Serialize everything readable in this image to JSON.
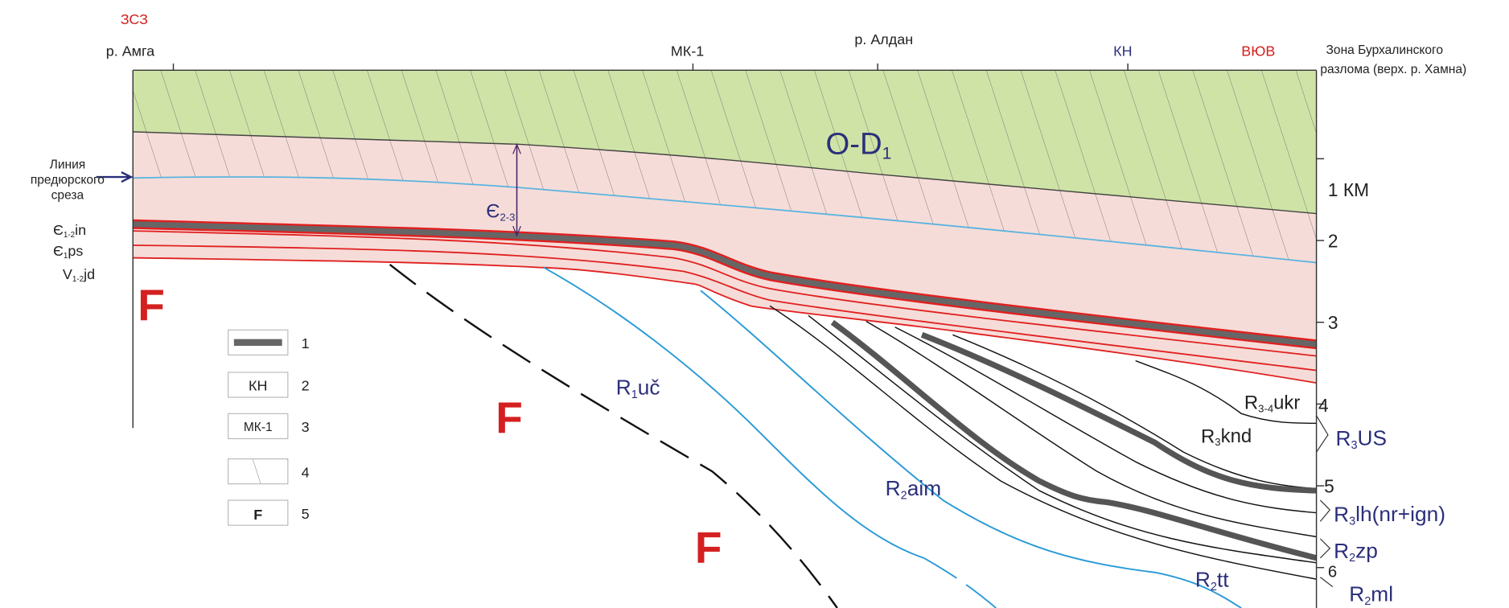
{
  "header": {
    "west": "ЗСЗ",
    "east": "ВЮВ",
    "points": [
      "р. Амга",
      "МК-1",
      "р. Алдан",
      "КН"
    ],
    "zone_line1": "Зона Бурхалинского",
    "zone_line2": "разлома (верх. р. Хамна)"
  },
  "pre_jurassic": [
    "Линия",
    "предюрского",
    "среза"
  ],
  "depth_labels": [
    "1 КМ",
    "2",
    "3",
    "4",
    "5",
    "6"
  ],
  "fault_symbol": "F",
  "legend": [
    {
      "number": "1"
    },
    {
      "number": "2",
      "sample": "КН"
    },
    {
      "number": "3",
      "sample": "МК-1"
    },
    {
      "number": "4"
    },
    {
      "number": "5",
      "sample": "F"
    }
  ],
  "units": [
    {
      "text": "O-D",
      "sub": "1",
      "rest": ""
    },
    {
      "text": "Є",
      "sub": "2-3",
      "rest": ""
    },
    {
      "text": "Є",
      "sub": "1-2",
      "rest": "in"
    },
    {
      "text": "Є",
      "sub": "1",
      "rest": "ps"
    },
    {
      "text": "V",
      "sub": "1-2",
      "rest": "jd"
    },
    {
      "text": "R",
      "sub": "1",
      "rest": "uč"
    },
    {
      "text": "R",
      "sub": "2",
      "rest": "aim"
    },
    {
      "text": "R",
      "sub": "2",
      "rest": "tt"
    },
    {
      "text": "R",
      "sub": "3-4",
      "rest": "ukr"
    },
    {
      "text": "R",
      "sub": "3",
      "rest": "knd"
    },
    {
      "text": "R",
      "sub": "3",
      "rest": "US"
    },
    {
      "text": "R",
      "sub": "3",
      "rest": "lh(nr+ign)"
    },
    {
      "text": "R",
      "sub": "2",
      "rest": "zp"
    },
    {
      "text": "R",
      "sub": "2",
      "rest": "ml"
    }
  ]
}
